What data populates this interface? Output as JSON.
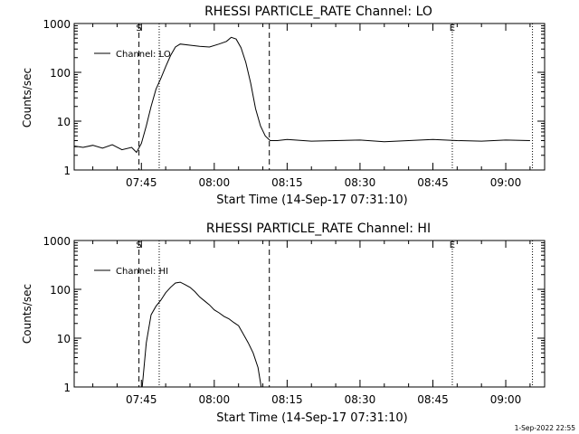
{
  "chart_data": [
    {
      "type": "line",
      "title": "RHESSI PARTICLE_RATE Channel: LO",
      "xlabel": "Start Time (14-Sep-17 07:31:10)",
      "ylabel": "Counts/sec",
      "yscale": "log",
      "ylim": [
        1,
        1000
      ],
      "xlim": [
        "07:31:10",
        "09:08:00"
      ],
      "grid": false,
      "legend": {
        "position": "top-left",
        "entries": [
          "Channel: LO"
        ]
      },
      "x_tick_labels": [
        "07:45",
        "08:00",
        "08:15",
        "08:30",
        "08:45",
        "09:00"
      ],
      "y_tick_labels": [
        "1",
        "10",
        "100",
        "1000"
      ],
      "markers": [
        {
          "label": "S",
          "time": "07:44:30",
          "style": "dashed"
        },
        {
          "label": "",
          "time": "07:48:40",
          "style": "dotted"
        },
        {
          "label": "",
          "time": "08:11:20",
          "style": "dashed"
        },
        {
          "label": "E",
          "time": "08:49:00",
          "style": "dotted"
        },
        {
          "label": "",
          "time": "09:05:30",
          "style": "dotted"
        }
      ],
      "series": [
        {
          "name": "Channel: LO",
          "x": [
            "07:31:10",
            "07:33:00",
            "07:35:00",
            "07:37:00",
            "07:39:00",
            "07:41:00",
            "07:43:00",
            "07:44:00",
            "07:45:00",
            "07:46:00",
            "07:47:00",
            "07:48:00",
            "07:49:00",
            "07:50:00",
            "07:51:00",
            "07:52:00",
            "07:53:00",
            "07:55:00",
            "07:57:00",
            "07:59:00",
            "08:01:00",
            "08:02:30",
            "08:03:30",
            "08:04:30",
            "08:05:30",
            "08:06:30",
            "08:07:30",
            "08:08:30",
            "08:09:30",
            "08:10:30",
            "08:11:30",
            "08:13:00",
            "08:15:00",
            "08:20:00",
            "08:25:00",
            "08:30:00",
            "08:35:00",
            "08:40:00",
            "08:45:00",
            "08:50:00",
            "08:55:00",
            "09:00:00",
            "09:05:00"
          ],
          "y": [
            3.1,
            2.9,
            3.2,
            2.8,
            3.3,
            2.6,
            2.9,
            2.3,
            3.5,
            8,
            20,
            45,
            75,
            130,
            220,
            330,
            380,
            360,
            340,
            330,
            380,
            430,
            520,
            480,
            320,
            160,
            60,
            18,
            8,
            5,
            4,
            4,
            4.2,
            3.9,
            4,
            4.1,
            3.8,
            4,
            4.2,
            4,
            3.9,
            4.1,
            4
          ]
        }
      ]
    },
    {
      "type": "line",
      "title": "RHESSI PARTICLE_RATE Channel: HI",
      "xlabel": "Start Time (14-Sep-17 07:31:10)",
      "ylabel": "Counts/sec",
      "yscale": "log",
      "ylim": [
        1,
        1000
      ],
      "xlim": [
        "07:31:10",
        "09:08:00"
      ],
      "grid": false,
      "legend": {
        "position": "top-left",
        "entries": [
          "Channel: HI"
        ]
      },
      "x_tick_labels": [
        "07:45",
        "08:00",
        "08:15",
        "08:30",
        "08:45",
        "09:00"
      ],
      "y_tick_labels": [
        "1",
        "10",
        "100",
        "1000"
      ],
      "markers": [
        {
          "label": "S",
          "time": "07:44:30",
          "style": "dashed"
        },
        {
          "label": "",
          "time": "07:48:40",
          "style": "dotted"
        },
        {
          "label": "",
          "time": "08:11:20",
          "style": "dashed"
        },
        {
          "label": "E",
          "time": "08:49:00",
          "style": "dotted"
        },
        {
          "label": "",
          "time": "09:05:30",
          "style": "dotted"
        }
      ],
      "series": [
        {
          "name": "Channel: HI",
          "x": [
            "07:45:10",
            "07:46:00",
            "07:47:00",
            "07:48:00",
            "07:49:00",
            "07:50:00",
            "07:51:00",
            "07:52:00",
            "07:53:00",
            "07:54:00",
            "07:55:00",
            "07:56:00",
            "07:57:00",
            "07:58:00",
            "07:59:00",
            "08:00:00",
            "08:01:00",
            "08:02:00",
            "08:03:00",
            "08:04:00",
            "08:05:00",
            "08:06:00",
            "08:07:00",
            "08:08:00",
            "08:09:00",
            "08:09:40"
          ],
          "y": [
            1,
            8,
            30,
            45,
            60,
            85,
            110,
            135,
            140,
            125,
            110,
            90,
            70,
            58,
            48,
            38,
            33,
            28,
            25,
            21,
            18,
            12,
            8,
            5,
            2.5,
            1
          ]
        }
      ]
    }
  ],
  "footer": {
    "timestamp": "1-Sep-2022 22:55"
  }
}
